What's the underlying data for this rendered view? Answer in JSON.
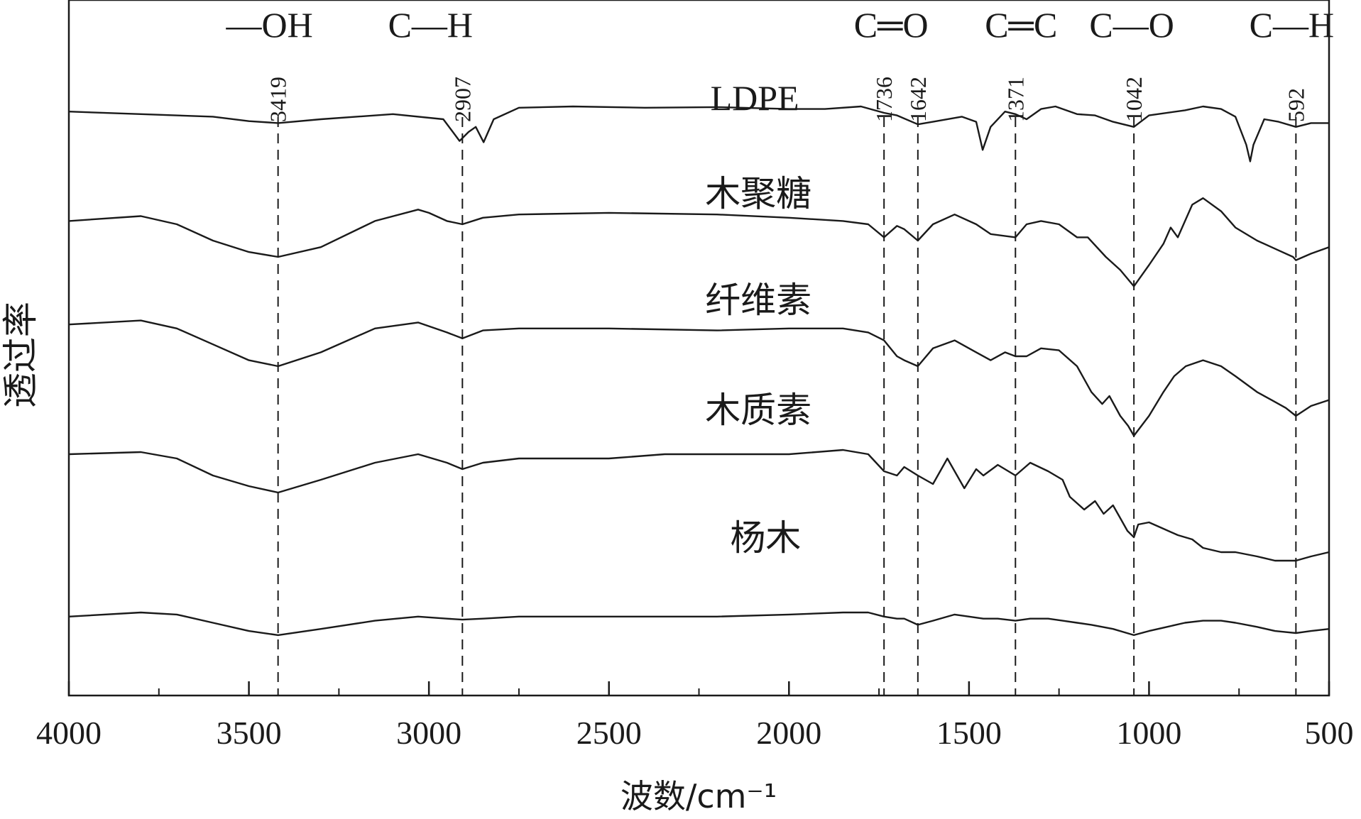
{
  "chart_data": {
    "type": "line",
    "xlabel": "波数/cm⁻¹",
    "ylabel": "透过率",
    "xlim": [
      4000,
      500
    ],
    "x_reversed": true,
    "grid": false,
    "x_ticks": [
      4000,
      3500,
      3000,
      2500,
      2000,
      1500,
      1000,
      500
    ],
    "x_tick_labels": [
      "4000",
      "3500",
      "3000",
      "2500",
      "2000",
      "1500",
      "1000",
      "500"
    ],
    "annotations": [
      {
        "wavenumber": 3419,
        "label": "3419",
        "group": "—OH"
      },
      {
        "wavenumber": 2907,
        "label": "2907",
        "group": "C—H"
      },
      {
        "wavenumber": 1736,
        "label": "1736",
        "group": "C═O"
      },
      {
        "wavenumber": 1642,
        "label": "1642",
        "group": ""
      },
      {
        "wavenumber": 1371,
        "label": "1371",
        "group": "C═C"
      },
      {
        "wavenumber": 1042,
        "label": "1042",
        "group": "C—O"
      },
      {
        "wavenumber": 592,
        "label": "592",
        "group": "C—H"
      }
    ],
    "series": [
      {
        "name": "LDPE",
        "points": [
          [
            4000,
            0.96
          ],
          [
            3800,
            0.94
          ],
          [
            3600,
            0.92
          ],
          [
            3500,
            0.885
          ],
          [
            3419,
            0.87
          ],
          [
            3300,
            0.9
          ],
          [
            3100,
            0.94
          ],
          [
            2960,
            0.9
          ],
          [
            2915,
            0.73
          ],
          [
            2890,
            0.8
          ],
          [
            2870,
            0.84
          ],
          [
            2848,
            0.72
          ],
          [
            2820,
            0.9
          ],
          [
            2750,
            0.99
          ],
          [
            2600,
            1.0
          ],
          [
            2400,
            0.99
          ],
          [
            2200,
            0.995
          ],
          [
            2000,
            0.98
          ],
          [
            1900,
            0.98
          ],
          [
            1800,
            1.0
          ],
          [
            1736,
            0.95
          ],
          [
            1700,
            0.93
          ],
          [
            1642,
            0.86
          ],
          [
            1600,
            0.88
          ],
          [
            1520,
            0.92
          ],
          [
            1480,
            0.88
          ],
          [
            1462,
            0.66
          ],
          [
            1440,
            0.84
          ],
          [
            1400,
            0.96
          ],
          [
            1371,
            0.94
          ],
          [
            1340,
            0.9
          ],
          [
            1300,
            0.98
          ],
          [
            1260,
            1.0
          ],
          [
            1200,
            0.94
          ],
          [
            1150,
            0.93
          ],
          [
            1100,
            0.88
          ],
          [
            1042,
            0.84
          ],
          [
            1000,
            0.93
          ],
          [
            900,
            0.97
          ],
          [
            850,
            1.0
          ],
          [
            800,
            0.98
          ],
          [
            760,
            0.92
          ],
          [
            730,
            0.7
          ],
          [
            719,
            0.57
          ],
          [
            710,
            0.7
          ],
          [
            680,
            0.9
          ],
          [
            640,
            0.88
          ],
          [
            592,
            0.84
          ],
          [
            550,
            0.87
          ],
          [
            500,
            0.87
          ]
        ]
      },
      {
        "name": "木聚糖",
        "points": [
          [
            4000,
            0.82
          ],
          [
            3800,
            0.85
          ],
          [
            3700,
            0.8
          ],
          [
            3600,
            0.7
          ],
          [
            3500,
            0.63
          ],
          [
            3419,
            0.6
          ],
          [
            3300,
            0.66
          ],
          [
            3150,
            0.82
          ],
          [
            3030,
            0.89
          ],
          [
            3000,
            0.87
          ],
          [
            2950,
            0.82
          ],
          [
            2907,
            0.8
          ],
          [
            2850,
            0.84
          ],
          [
            2750,
            0.86
          ],
          [
            2500,
            0.87
          ],
          [
            2200,
            0.86
          ],
          [
            2000,
            0.84
          ],
          [
            1850,
            0.82
          ],
          [
            1780,
            0.8
          ],
          [
            1736,
            0.72
          ],
          [
            1700,
            0.79
          ],
          [
            1680,
            0.77
          ],
          [
            1642,
            0.7
          ],
          [
            1600,
            0.8
          ],
          [
            1540,
            0.86
          ],
          [
            1480,
            0.8
          ],
          [
            1440,
            0.74
          ],
          [
            1371,
            0.72
          ],
          [
            1340,
            0.8
          ],
          [
            1300,
            0.82
          ],
          [
            1250,
            0.8
          ],
          [
            1200,
            0.72
          ],
          [
            1170,
            0.72
          ],
          [
            1120,
            0.6
          ],
          [
            1080,
            0.52
          ],
          [
            1042,
            0.42
          ],
          [
            1000,
            0.55
          ],
          [
            960,
            0.68
          ],
          [
            940,
            0.78
          ],
          [
            920,
            0.72
          ],
          [
            880,
            0.92
          ],
          [
            850,
            0.96
          ],
          [
            800,
            0.88
          ],
          [
            760,
            0.78
          ],
          [
            700,
            0.7
          ],
          [
            640,
            0.64
          ],
          [
            600,
            0.6
          ],
          [
            592,
            0.58
          ],
          [
            550,
            0.62
          ],
          [
            500,
            0.66
          ]
        ]
      },
      {
        "name": "纤维素",
        "points": [
          [
            4000,
            0.76
          ],
          [
            3800,
            0.78
          ],
          [
            3700,
            0.74
          ],
          [
            3600,
            0.66
          ],
          [
            3500,
            0.58
          ],
          [
            3419,
            0.55
          ],
          [
            3300,
            0.62
          ],
          [
            3150,
            0.74
          ],
          [
            3030,
            0.77
          ],
          [
            2950,
            0.72
          ],
          [
            2907,
            0.69
          ],
          [
            2850,
            0.73
          ],
          [
            2750,
            0.74
          ],
          [
            2500,
            0.74
          ],
          [
            2200,
            0.73
          ],
          [
            2000,
            0.74
          ],
          [
            1850,
            0.74
          ],
          [
            1780,
            0.72
          ],
          [
            1736,
            0.68
          ],
          [
            1700,
            0.6
          ],
          [
            1680,
            0.58
          ],
          [
            1642,
            0.55
          ],
          [
            1600,
            0.64
          ],
          [
            1540,
            0.68
          ],
          [
            1480,
            0.62
          ],
          [
            1440,
            0.58
          ],
          [
            1400,
            0.62
          ],
          [
            1371,
            0.6
          ],
          [
            1340,
            0.6
          ],
          [
            1300,
            0.64
          ],
          [
            1250,
            0.63
          ],
          [
            1200,
            0.55
          ],
          [
            1160,
            0.42
          ],
          [
            1130,
            0.36
          ],
          [
            1110,
            0.4
          ],
          [
            1080,
            0.3
          ],
          [
            1058,
            0.25
          ],
          [
            1042,
            0.2
          ],
          [
            1000,
            0.3
          ],
          [
            960,
            0.42
          ],
          [
            930,
            0.5
          ],
          [
            898,
            0.55
          ],
          [
            850,
            0.58
          ],
          [
            800,
            0.55
          ],
          [
            760,
            0.5
          ],
          [
            700,
            0.42
          ],
          [
            660,
            0.38
          ],
          [
            620,
            0.34
          ],
          [
            592,
            0.3
          ],
          [
            550,
            0.35
          ],
          [
            500,
            0.38
          ]
        ]
      },
      {
        "name": "木质素",
        "points": [
          [
            4000,
            0.6
          ],
          [
            3800,
            0.61
          ],
          [
            3700,
            0.58
          ],
          [
            3600,
            0.5
          ],
          [
            3500,
            0.45
          ],
          [
            3419,
            0.42
          ],
          [
            3300,
            0.48
          ],
          [
            3150,
            0.56
          ],
          [
            3030,
            0.6
          ],
          [
            2950,
            0.56
          ],
          [
            2907,
            0.53
          ],
          [
            2850,
            0.56
          ],
          [
            2750,
            0.58
          ],
          [
            2500,
            0.58
          ],
          [
            2345,
            0.6
          ],
          [
            2200,
            0.6
          ],
          [
            2000,
            0.6
          ],
          [
            1850,
            0.62
          ],
          [
            1780,
            0.6
          ],
          [
            1736,
            0.52
          ],
          [
            1700,
            0.5
          ],
          [
            1680,
            0.54
          ],
          [
            1642,
            0.5
          ],
          [
            1600,
            0.46
          ],
          [
            1560,
            0.58
          ],
          [
            1513,
            0.44
          ],
          [
            1480,
            0.53
          ],
          [
            1460,
            0.5
          ],
          [
            1420,
            0.55
          ],
          [
            1371,
            0.5
          ],
          [
            1330,
            0.56
          ],
          [
            1280,
            0.52
          ],
          [
            1240,
            0.48
          ],
          [
            1220,
            0.4
          ],
          [
            1180,
            0.34
          ],
          [
            1150,
            0.38
          ],
          [
            1126,
            0.32
          ],
          [
            1100,
            0.36
          ],
          [
            1080,
            0.3
          ],
          [
            1060,
            0.24
          ],
          [
            1042,
            0.21
          ],
          [
            1030,
            0.27
          ],
          [
            1000,
            0.28
          ],
          [
            960,
            0.25
          ],
          [
            920,
            0.22
          ],
          [
            880,
            0.2
          ],
          [
            850,
            0.16
          ],
          [
            800,
            0.14
          ],
          [
            760,
            0.14
          ],
          [
            700,
            0.12
          ],
          [
            650,
            0.1
          ],
          [
            592,
            0.1
          ],
          [
            550,
            0.12
          ],
          [
            500,
            0.14
          ]
        ]
      },
      {
        "name": "杨木",
        "points": [
          [
            4000,
            0.28
          ],
          [
            3800,
            0.3
          ],
          [
            3700,
            0.29
          ],
          [
            3600,
            0.25
          ],
          [
            3500,
            0.21
          ],
          [
            3419,
            0.19
          ],
          [
            3300,
            0.22
          ],
          [
            3150,
            0.26
          ],
          [
            3030,
            0.28
          ],
          [
            2950,
            0.27
          ],
          [
            2907,
            0.265
          ],
          [
            2850,
            0.27
          ],
          [
            2750,
            0.28
          ],
          [
            2500,
            0.28
          ],
          [
            2200,
            0.28
          ],
          [
            2000,
            0.29
          ],
          [
            1850,
            0.3
          ],
          [
            1780,
            0.3
          ],
          [
            1736,
            0.28
          ],
          [
            1700,
            0.27
          ],
          [
            1680,
            0.27
          ],
          [
            1642,
            0.24
          ],
          [
            1600,
            0.26
          ],
          [
            1540,
            0.29
          ],
          [
            1500,
            0.28
          ],
          [
            1460,
            0.27
          ],
          [
            1420,
            0.27
          ],
          [
            1371,
            0.26
          ],
          [
            1330,
            0.27
          ],
          [
            1280,
            0.27
          ],
          [
            1240,
            0.26
          ],
          [
            1200,
            0.25
          ],
          [
            1160,
            0.24
          ],
          [
            1100,
            0.22
          ],
          [
            1042,
            0.19
          ],
          [
            1000,
            0.21
          ],
          [
            950,
            0.23
          ],
          [
            900,
            0.25
          ],
          [
            850,
            0.26
          ],
          [
            800,
            0.26
          ],
          [
            760,
            0.25
          ],
          [
            700,
            0.23
          ],
          [
            650,
            0.21
          ],
          [
            592,
            0.2
          ],
          [
            550,
            0.21
          ],
          [
            500,
            0.22
          ]
        ]
      }
    ]
  }
}
